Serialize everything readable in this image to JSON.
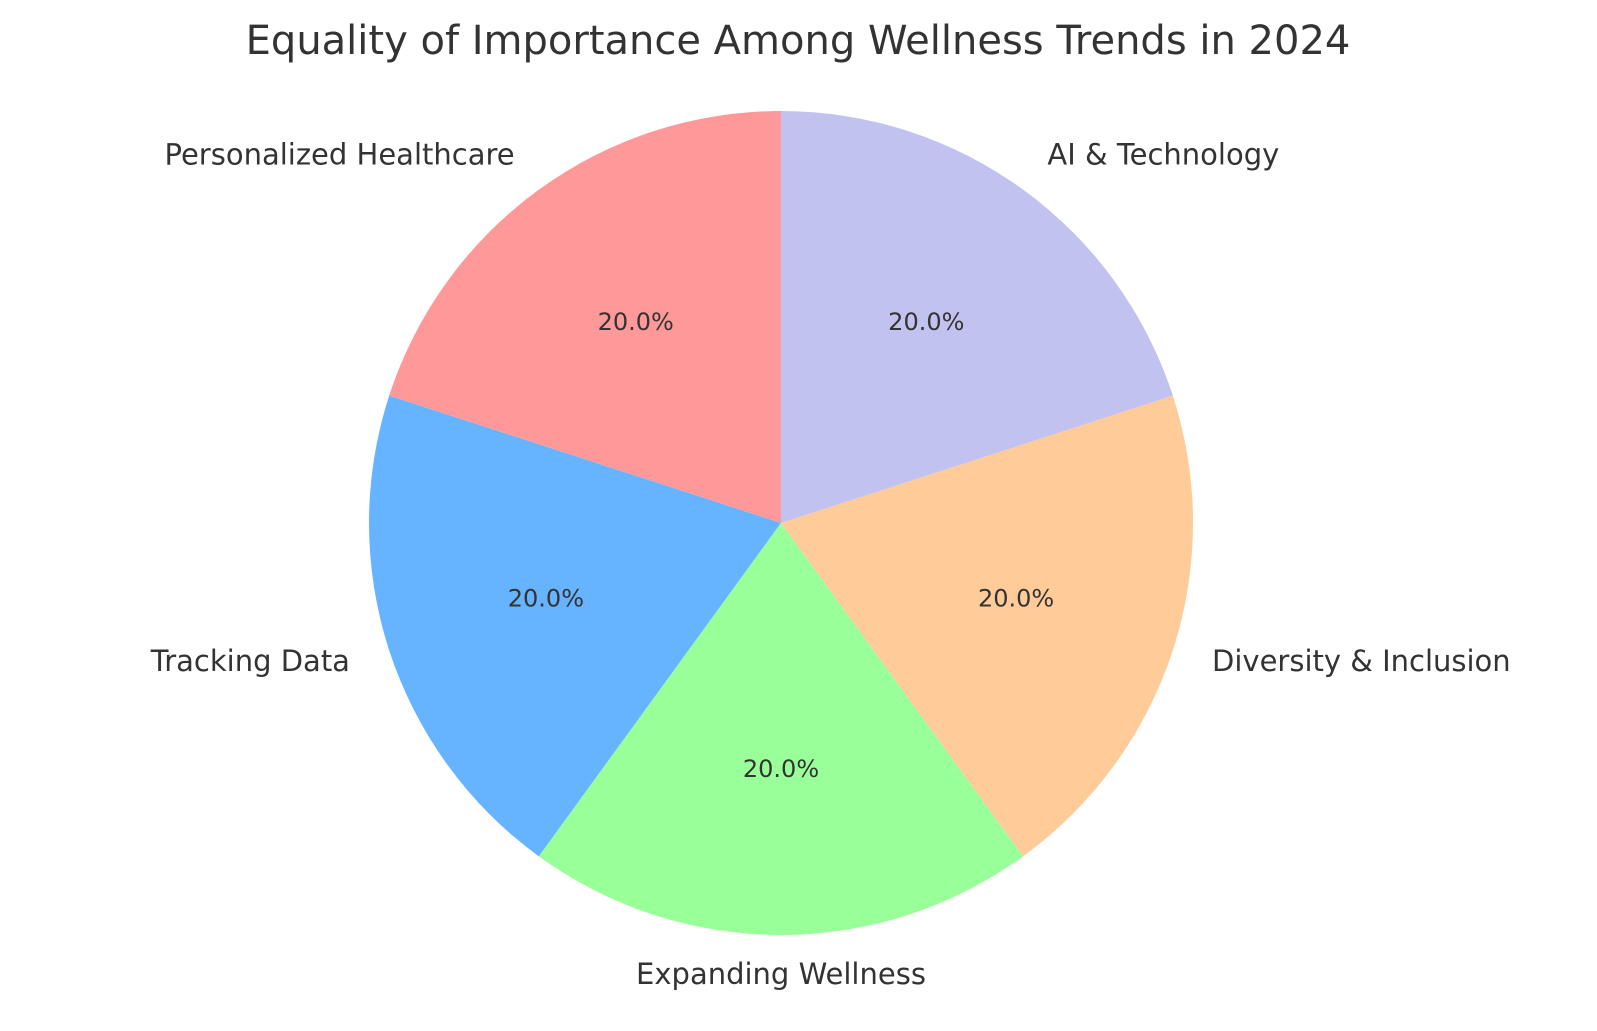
{
  "chart_data": {
    "type": "pie",
    "title": "Equality of Importance Among Wellness Trends in 2024",
    "start_angle_deg": 90,
    "direction": "counterclockwise",
    "slices": [
      {
        "label": "Personalized Healthcare",
        "value": 20.0,
        "pct_label": "20.0%",
        "color": "#ff9999"
      },
      {
        "label": "Tracking Data",
        "value": 20.0,
        "pct_label": "20.0%",
        "color": "#66b3ff"
      },
      {
        "label": "Expanding Wellness",
        "value": 20.0,
        "pct_label": "20.0%",
        "color": "#99ff99"
      },
      {
        "label": "Diversity & Inclusion",
        "value": 20.0,
        "pct_label": "20.0%",
        "color": "#ffcc99"
      },
      {
        "label": "AI & Technology",
        "value": 20.0,
        "pct_label": "20.0%",
        "color": "#c2c2f0"
      }
    ]
  }
}
